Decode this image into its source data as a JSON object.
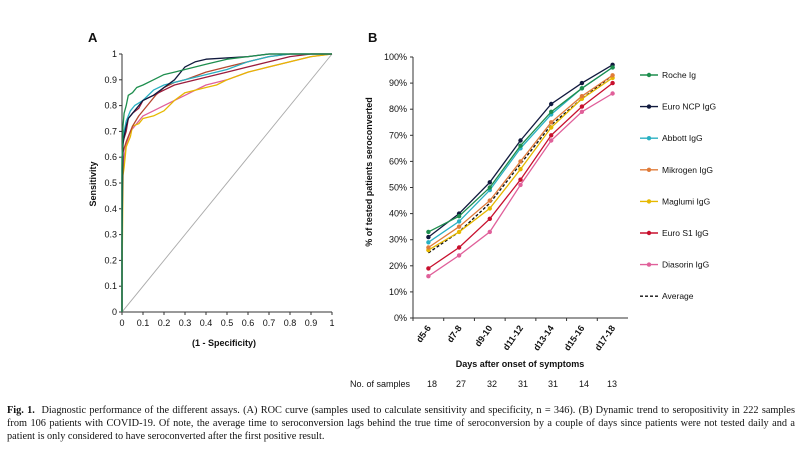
{
  "chart_data": [
    {
      "panel": "A",
      "type": "line",
      "xlabel": "(1 - Specificity)",
      "ylabel": "Sensitivity",
      "xlim": [
        0,
        1
      ],
      "ylim": [
        0,
        1
      ],
      "xticks": [
        "0",
        "0.1",
        "0.2",
        "0.3",
        "0.4",
        "0.5",
        "0.6",
        "0.7",
        "0.8",
        "0.9",
        "1"
      ],
      "yticks": [
        "0",
        "0.1",
        "0.2",
        "0.3",
        "0.4",
        "0.5",
        "0.6",
        "0.7",
        "0.8",
        "0.9",
        "1"
      ],
      "series": [
        {
          "color": "#1e8e4e",
          "points": [
            [
              0,
              0
            ],
            [
              0,
              0.55
            ],
            [
              0.005,
              0.72
            ],
            [
              0.01,
              0.77
            ],
            [
              0.02,
              0.8
            ],
            [
              0.03,
              0.84
            ],
            [
              0.05,
              0.85
            ],
            [
              0.07,
              0.87
            ],
            [
              0.1,
              0.88
            ],
            [
              0.15,
              0.9
            ],
            [
              0.2,
              0.92
            ],
            [
              0.25,
              0.93
            ],
            [
              0.3,
              0.94
            ],
            [
              0.4,
              0.96
            ],
            [
              0.5,
              0.98
            ],
            [
              0.6,
              0.99
            ],
            [
              0.7,
              1
            ],
            [
              1,
              1
            ]
          ]
        },
        {
          "color": "#111a3e",
          "points": [
            [
              0,
              0
            ],
            [
              0,
              0.26
            ],
            [
              0.005,
              0.65
            ],
            [
              0.01,
              0.68
            ],
            [
              0.02,
              0.72
            ],
            [
              0.03,
              0.75
            ],
            [
              0.05,
              0.77
            ],
            [
              0.08,
              0.8
            ],
            [
              0.1,
              0.82
            ],
            [
              0.15,
              0.84
            ],
            [
              0.2,
              0.87
            ],
            [
              0.25,
              0.9
            ],
            [
              0.3,
              0.95
            ],
            [
              0.35,
              0.97
            ],
            [
              0.4,
              0.98
            ],
            [
              0.6,
              0.99
            ],
            [
              0.7,
              1
            ],
            [
              1,
              1
            ]
          ]
        },
        {
          "color": "#29b0c2",
          "points": [
            [
              0,
              0
            ],
            [
              0,
              0.6
            ],
            [
              0.005,
              0.65
            ],
            [
              0.01,
              0.7
            ],
            [
              0.02,
              0.74
            ],
            [
              0.04,
              0.78
            ],
            [
              0.06,
              0.8
            ],
            [
              0.1,
              0.82
            ],
            [
              0.15,
              0.86
            ],
            [
              0.2,
              0.88
            ],
            [
              0.3,
              0.9
            ],
            [
              0.4,
              0.92
            ],
            [
              0.5,
              0.94
            ],
            [
              0.6,
              0.97
            ],
            [
              0.7,
              0.99
            ],
            [
              0.8,
              1
            ],
            [
              1,
              1
            ]
          ]
        },
        {
          "color": "#b5472f",
          "points": [
            [
              0,
              0
            ],
            [
              0,
              0.52
            ],
            [
              0.005,
              0.62
            ],
            [
              0.02,
              0.66
            ],
            [
              0.05,
              0.72
            ],
            [
              0.08,
              0.76
            ],
            [
              0.12,
              0.8
            ],
            [
              0.16,
              0.84
            ],
            [
              0.2,
              0.87
            ],
            [
              0.25,
              0.89
            ],
            [
              0.3,
              0.9
            ],
            [
              0.4,
              0.93
            ],
            [
              0.5,
              0.95
            ],
            [
              0.6,
              0.97
            ],
            [
              0.7,
              0.99
            ],
            [
              0.8,
              1
            ],
            [
              1,
              1
            ]
          ]
        },
        {
          "color": "#e6b800",
          "points": [
            [
              0,
              0
            ],
            [
              0,
              0.09
            ],
            [
              0.005,
              0.53
            ],
            [
              0.01,
              0.56
            ],
            [
              0.02,
              0.64
            ],
            [
              0.04,
              0.68
            ],
            [
              0.05,
              0.72
            ],
            [
              0.08,
              0.73
            ],
            [
              0.1,
              0.75
            ],
            [
              0.15,
              0.76
            ],
            [
              0.2,
              0.78
            ],
            [
              0.25,
              0.82
            ],
            [
              0.3,
              0.85
            ],
            [
              0.35,
              0.86
            ],
            [
              0.4,
              0.87
            ],
            [
              0.45,
              0.88
            ],
            [
              0.5,
              0.9
            ],
            [
              0.6,
              0.93
            ],
            [
              0.7,
              0.95
            ],
            [
              0.8,
              0.97
            ],
            [
              0.9,
              0.99
            ],
            [
              1,
              1
            ]
          ]
        },
        {
          "color": "#9b1c3c",
          "points": [
            [
              0,
              0
            ],
            [
              0,
              0.6
            ],
            [
              0.005,
              0.66
            ],
            [
              0.02,
              0.7
            ],
            [
              0.03,
              0.75
            ],
            [
              0.05,
              0.77
            ],
            [
              0.08,
              0.79
            ],
            [
              0.1,
              0.82
            ],
            [
              0.15,
              0.84
            ],
            [
              0.2,
              0.86
            ],
            [
              0.25,
              0.88
            ],
            [
              0.3,
              0.89
            ],
            [
              0.4,
              0.91
            ],
            [
              0.5,
              0.93
            ],
            [
              0.6,
              0.95
            ],
            [
              0.7,
              0.97
            ],
            [
              0.8,
              0.99
            ],
            [
              0.9,
              1
            ],
            [
              1,
              1
            ]
          ]
        },
        {
          "color": "#e0609a",
          "points": [
            [
              0,
              0
            ],
            [
              0,
              0.5
            ],
            [
              0.01,
              0.6
            ],
            [
              0.02,
              0.65
            ],
            [
              0.04,
              0.7
            ],
            [
              0.06,
              0.72
            ],
            [
              0.08,
              0.74
            ],
            [
              0.1,
              0.76
            ],
            [
              0.15,
              0.78
            ],
            [
              0.2,
              0.8
            ],
            [
              0.25,
              0.82
            ],
            [
              0.3,
              0.84
            ],
            [
              0.35,
              0.86
            ],
            [
              0.4,
              0.88
            ],
            [
              0.5,
              0.9
            ],
            [
              0.6,
              0.93
            ],
            [
              0.7,
              0.95
            ],
            [
              0.8,
              0.97
            ],
            [
              0.9,
              0.99
            ],
            [
              1,
              1
            ]
          ]
        },
        {
          "color": "#aaaaaa",
          "dash": false,
          "points": [
            [
              0,
              0
            ],
            [
              1,
              1
            ]
          ]
        }
      ]
    },
    {
      "panel": "B",
      "type": "line",
      "xlabel": "Days after onset of symptoms",
      "ylabel": "% of tested patients seroconverted",
      "ylim": [
        0,
        100
      ],
      "yticks": [
        "0%",
        "10%",
        "20%",
        "30%",
        "40%",
        "50%",
        "60%",
        "70%",
        "80%",
        "90%",
        "100%"
      ],
      "categories": [
        "d5-6",
        "d7-8",
        "d9-10",
        "d11-12",
        "d13-14",
        "d15-16",
        "d17-18"
      ],
      "series": [
        {
          "name": "Roche Ig",
          "color": "#1e8e4e",
          "values": [
            33,
            39,
            50,
            66,
            79,
            88,
            96
          ]
        },
        {
          "name": "Euro NCP IgG",
          "color": "#111a3e",
          "values": [
            31,
            40,
            52,
            68,
            82,
            90,
            97
          ]
        },
        {
          "name": "Abbott IgG",
          "color": "#29b0c2",
          "values": [
            29,
            37,
            49,
            65,
            78,
            88,
            96
          ]
        },
        {
          "name": "Mikrogen IgG",
          "color": "#e07b39",
          "values": [
            27,
            35,
            45,
            60,
            75,
            85,
            93
          ]
        },
        {
          "name": "Maglumi IgG",
          "color": "#e6b800",
          "values": [
            26,
            33,
            42,
            57,
            73,
            84,
            92
          ]
        },
        {
          "name": "Euro S1 IgG",
          "color": "#c8102e",
          "values": [
            19,
            27,
            38,
            53,
            70,
            81,
            90
          ]
        },
        {
          "name": "Diasorin IgG",
          "color": "#e0609a",
          "values": [
            16,
            24,
            33,
            51,
            68,
            79,
            86
          ]
        },
        {
          "name": "Average",
          "color": "#111111",
          "dash": true,
          "values": [
            25,
            33,
            44,
            59,
            74,
            84,
            93
          ]
        }
      ],
      "samples_label": "No. of samples",
      "samples": [
        "18",
        "27",
        "32",
        "31",
        "31",
        "14",
        "13"
      ]
    }
  ],
  "caption": {
    "label": "Fig. 1.",
    "text": "Diagnostic performance of the different assays. (A) ROC curve (samples used to calculate sensitivity and specificity, n = 346). (B) Dynamic trend to seropositivity in 222 samples from 106 patients with COVID-19. Of note, the average time to seroconversion lags behind the true time of seroconversion by a couple of days since patients were not tested daily and a patient is only considered to have seroconverted after the first positive result."
  }
}
